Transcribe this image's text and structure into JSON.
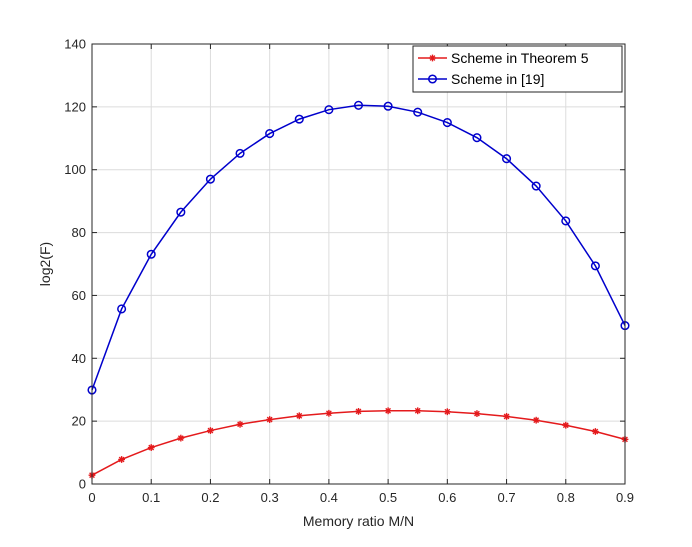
{
  "chart_data": {
    "type": "line",
    "xlabel": "Memory ratio M/N",
    "ylabel": "log2(F)",
    "xlim": [
      0,
      0.9
    ],
    "ylim": [
      0,
      140
    ],
    "xticks": [
      "0",
      "0.1",
      "0.2",
      "0.3",
      "0.4",
      "0.5",
      "0.6",
      "0.7",
      "0.8",
      "0.9"
    ],
    "yticks": [
      "0",
      "20",
      "40",
      "60",
      "80",
      "100",
      "120",
      "140"
    ],
    "grid": true,
    "legend_position": "top-right",
    "x": [
      0,
      0.05,
      0.1,
      0.15,
      0.2,
      0.25,
      0.3,
      0.35,
      0.4,
      0.45,
      0.5,
      0.55,
      0.6,
      0.65,
      0.7,
      0.75,
      0.8,
      0.85,
      0.9
    ],
    "series": [
      {
        "name": "Scheme in Theorem 5",
        "color": "#e41a1c",
        "marker": "asterisk",
        "values": [
          2.8,
          7.8,
          11.6,
          14.6,
          17.0,
          19.0,
          20.5,
          21.7,
          22.5,
          23.1,
          23.3,
          23.3,
          23.0,
          22.4,
          21.5,
          20.3,
          18.7,
          16.7,
          14.2
        ]
      },
      {
        "name": "Scheme in [19]",
        "color": "#0000cc",
        "marker": "circle",
        "values": [
          29.9,
          55.7,
          73.1,
          86.5,
          97.0,
          105.2,
          111.5,
          116.1,
          119.1,
          120.5,
          120.2,
          118.3,
          115.0,
          110.2,
          103.5,
          94.8,
          83.7,
          69.4,
          50.4
        ]
      }
    ]
  }
}
